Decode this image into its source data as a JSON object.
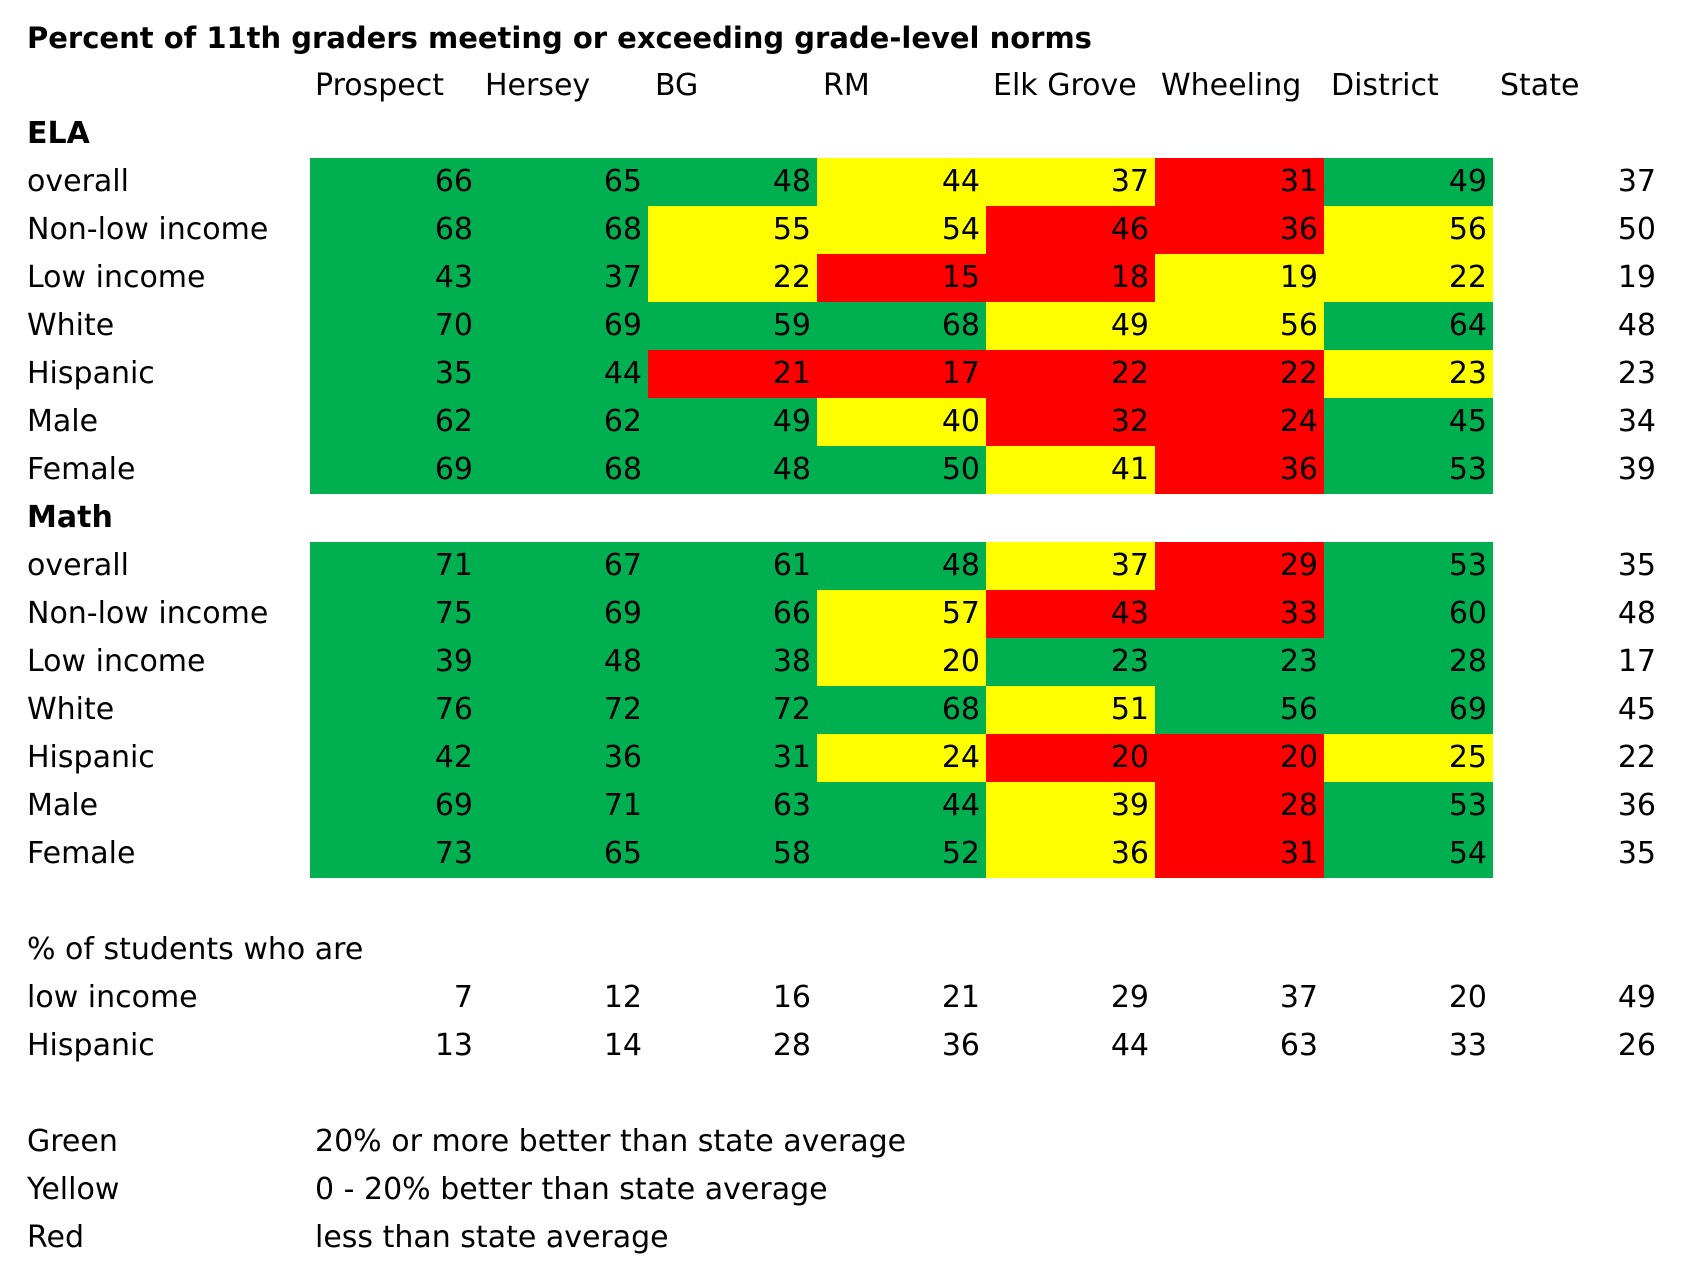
{
  "colors": {
    "green": "#00b050",
    "yellow": "#ffff00",
    "red": "#ff0000"
  },
  "chart_data": {
    "type": "table",
    "title": "Percent of 11th graders meeting or exceeding grade-level norms",
    "columns": [
      "Prospect",
      "Hersey",
      "BG",
      "RM",
      "Elk Grove",
      "Wheeling",
      "District",
      "State"
    ],
    "sections": [
      {
        "name": "ELA",
        "rows": [
          {
            "label": "overall",
            "values": [
              66,
              65,
              48,
              44,
              37,
              31,
              49,
              37
            ],
            "colors": [
              "green",
              "green",
              "green",
              "yellow",
              "yellow",
              "red",
              "green"
            ]
          },
          {
            "label": "Non-low income",
            "values": [
              68,
              68,
              55,
              54,
              46,
              36,
              56,
              50
            ],
            "colors": [
              "green",
              "green",
              "yellow",
              "yellow",
              "red",
              "red",
              "yellow"
            ]
          },
          {
            "label": "Low income",
            "values": [
              43,
              37,
              22,
              15,
              18,
              19,
              22,
              19
            ],
            "colors": [
              "green",
              "green",
              "yellow",
              "red",
              "red",
              "yellow",
              "yellow"
            ]
          },
          {
            "label": "White",
            "values": [
              70,
              69,
              59,
              68,
              49,
              56,
              64,
              48
            ],
            "colors": [
              "green",
              "green",
              "green",
              "green",
              "yellow",
              "yellow",
              "green"
            ]
          },
          {
            "label": "Hispanic",
            "values": [
              35,
              44,
              21,
              17,
              22,
              22,
              23,
              23
            ],
            "colors": [
              "green",
              "green",
              "red",
              "red",
              "red",
              "red",
              "yellow"
            ]
          },
          {
            "label": "Male",
            "values": [
              62,
              62,
              49,
              40,
              32,
              24,
              45,
              34
            ],
            "colors": [
              "green",
              "green",
              "green",
              "yellow",
              "red",
              "red",
              "green"
            ]
          },
          {
            "label": "Female",
            "values": [
              69,
              68,
              48,
              50,
              41,
              36,
              53,
              39
            ],
            "colors": [
              "green",
              "green",
              "green",
              "green",
              "yellow",
              "red",
              "green"
            ]
          }
        ]
      },
      {
        "name": "Math",
        "rows": [
          {
            "label": "overall",
            "values": [
              71,
              67,
              61,
              48,
              37,
              29,
              53,
              35
            ],
            "colors": [
              "green",
              "green",
              "green",
              "green",
              "yellow",
              "red",
              "green"
            ]
          },
          {
            "label": "Non-low income",
            "values": [
              75,
              69,
              66,
              57,
              43,
              33,
              60,
              48
            ],
            "colors": [
              "green",
              "green",
              "green",
              "yellow",
              "red",
              "red",
              "green"
            ]
          },
          {
            "label": "Low income",
            "values": [
              39,
              48,
              38,
              20,
              23,
              23,
              28,
              17
            ],
            "colors": [
              "green",
              "green",
              "green",
              "yellow",
              "green",
              "green",
              "green"
            ]
          },
          {
            "label": "White",
            "values": [
              76,
              72,
              72,
              68,
              51,
              56,
              69,
              45
            ],
            "colors": [
              "green",
              "green",
              "green",
              "green",
              "yellow",
              "green",
              "green"
            ]
          },
          {
            "label": "Hispanic",
            "values": [
              42,
              36,
              31,
              24,
              20,
              20,
              25,
              22
            ],
            "colors": [
              "green",
              "green",
              "green",
              "yellow",
              "red",
              "red",
              "yellow"
            ]
          },
          {
            "label": "Male",
            "values": [
              69,
              71,
              63,
              44,
              39,
              28,
              53,
              36
            ],
            "colors": [
              "green",
              "green",
              "green",
              "green",
              "yellow",
              "red",
              "green"
            ]
          },
          {
            "label": "Female",
            "values": [
              73,
              65,
              58,
              52,
              36,
              31,
              54,
              35
            ],
            "colors": [
              "green",
              "green",
              "green",
              "green",
              "yellow",
              "red",
              "green"
            ]
          }
        ]
      }
    ],
    "demographics": {
      "heading": "% of students who are",
      "rows": [
        {
          "label": "low income",
          "values": [
            7,
            12,
            16,
            21,
            29,
            37,
            20,
            49
          ]
        },
        {
          "label": "Hispanic",
          "values": [
            13,
            14,
            28,
            36,
            44,
            63,
            33,
            26
          ]
        }
      ]
    },
    "legend": [
      {
        "color_name": "Green",
        "color": "green",
        "text": "20% or more better than state average"
      },
      {
        "color_name": "Yellow",
        "color": "yellow",
        "text": "0 - 20% better than state average"
      },
      {
        "color_name": "Red",
        "color": "red",
        "text": "less than state average"
      }
    ]
  }
}
